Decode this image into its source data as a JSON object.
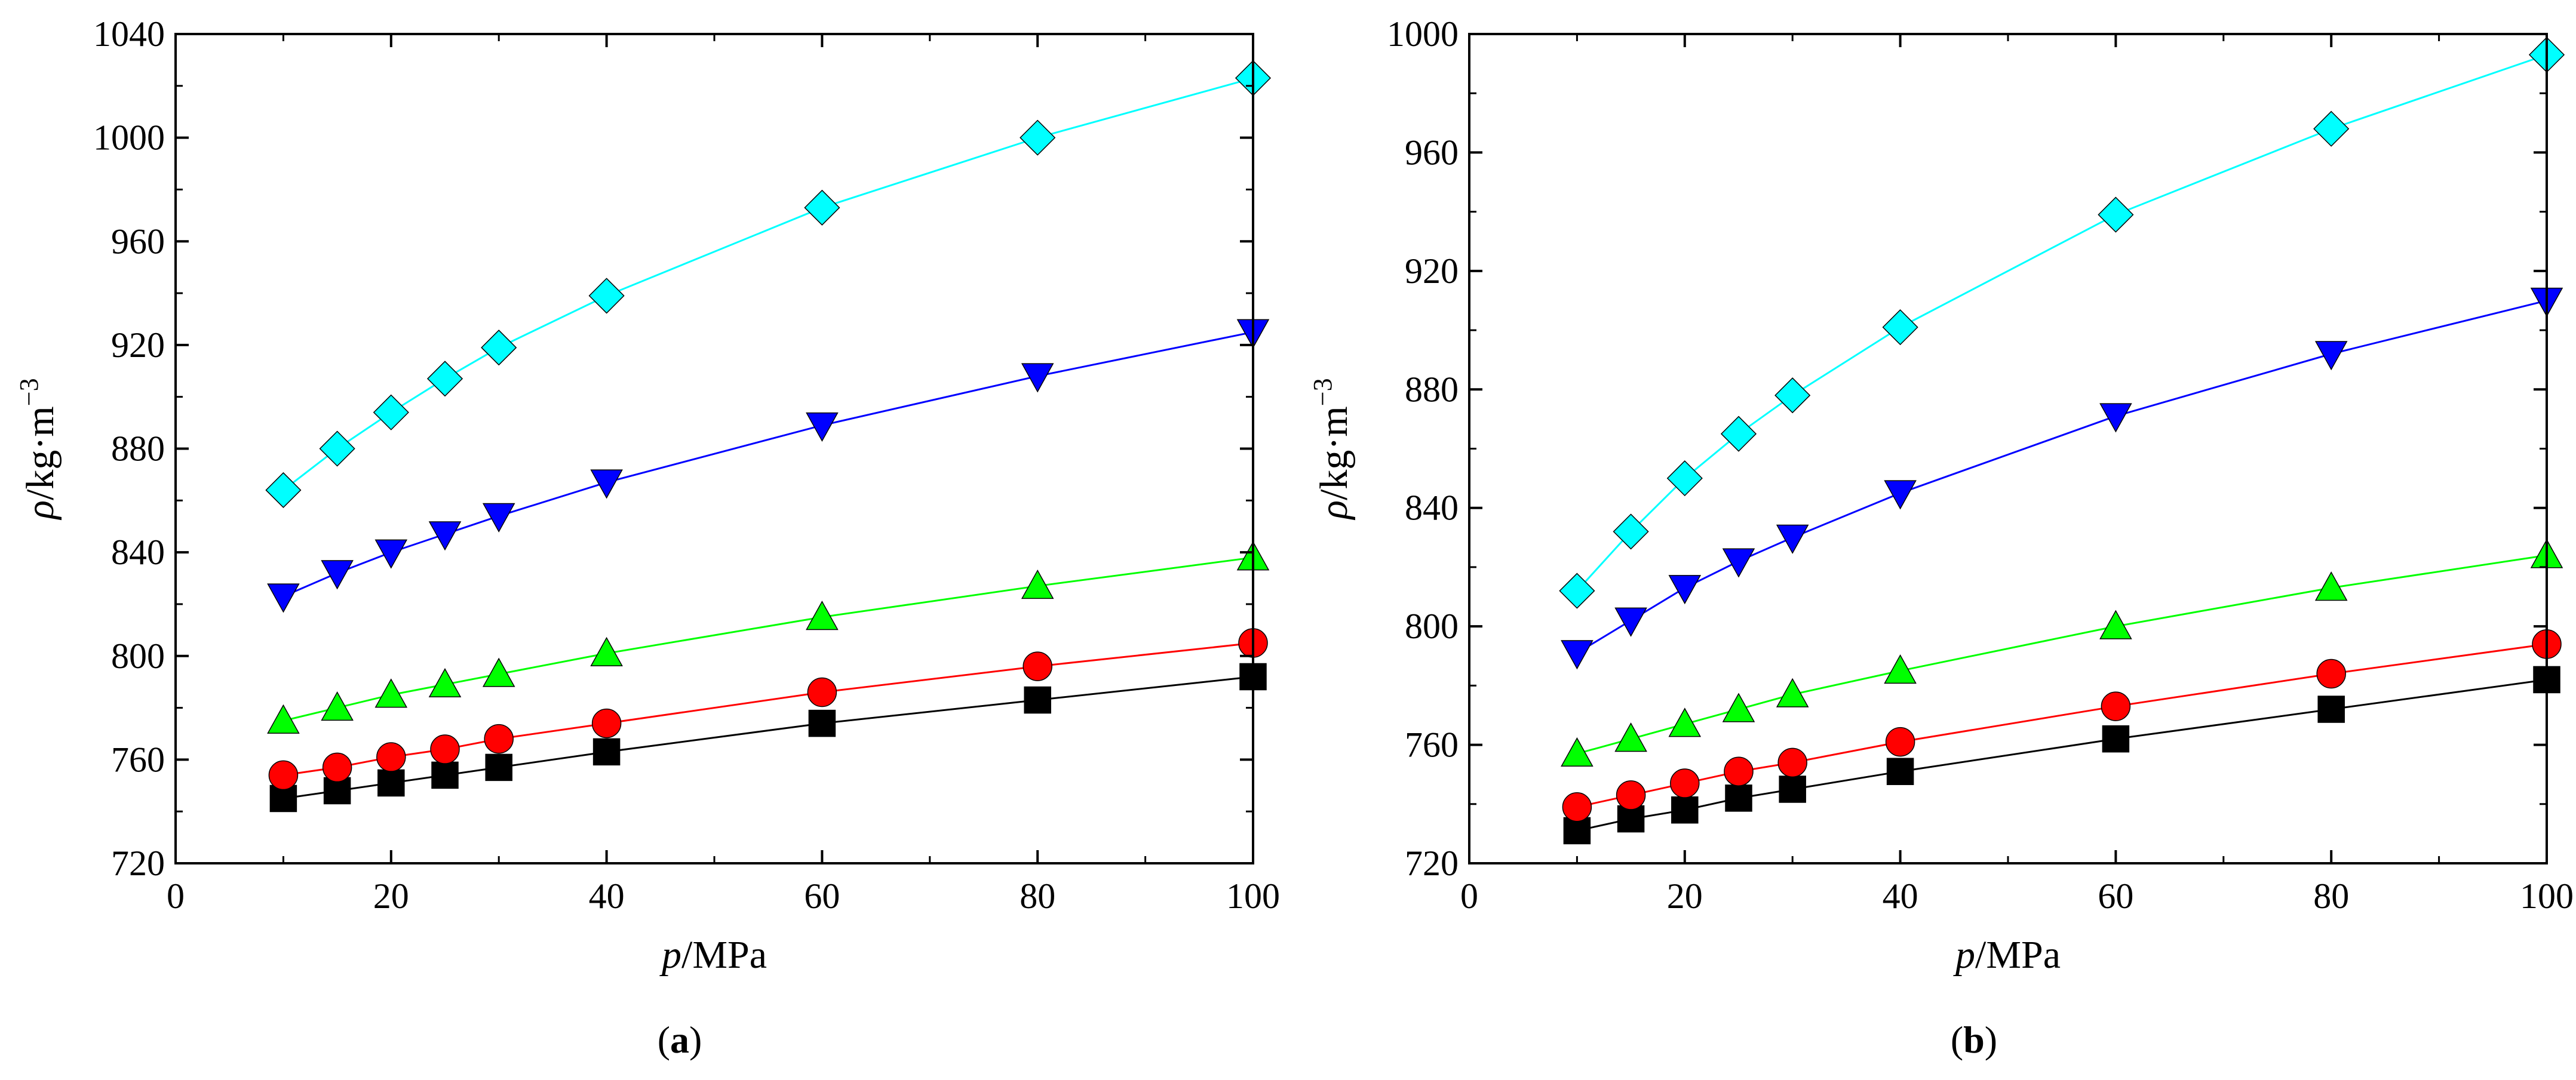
{
  "chart_data": [
    {
      "type": "line",
      "panel_label": "a",
      "xlabel": {
        "symbol": "p",
        "unit": "/MPa"
      },
      "ylabel": {
        "symbol": "ρ",
        "unit": "/kg·m",
        "unit_sup": "−3"
      },
      "xlim": [
        0,
        100
      ],
      "ylim": [
        720,
        1040
      ],
      "xticks": [
        0,
        20,
        40,
        60,
        80,
        100
      ],
      "yticks": [
        720,
        760,
        800,
        840,
        880,
        920,
        960,
        1000,
        1040
      ],
      "x": [
        10,
        15,
        20,
        25,
        30,
        40,
        60,
        80,
        100
      ],
      "series": [
        {
          "color": "#000000",
          "marker": "square",
          "values": [
            745,
            748,
            751,
            754,
            757,
            763,
            774,
            783,
            792
          ]
        },
        {
          "color": "#ff0000",
          "marker": "circle",
          "values": [
            754,
            757,
            761,
            764,
            768,
            774,
            786,
            796,
            805
          ]
        },
        {
          "color": "#00ff00",
          "marker": "triangle-up",
          "values": [
            775,
            780,
            785,
            789,
            793,
            801,
            815,
            827,
            838
          ]
        },
        {
          "color": "#0000ff",
          "marker": "triangle-down",
          "values": [
            823,
            832,
            840,
            847,
            854,
            867,
            889,
            908,
            925
          ]
        },
        {
          "color": "#00ffff",
          "marker": "diamond",
          "values": [
            864,
            880,
            894,
            907,
            919,
            939,
            973,
            1000,
            1023
          ]
        }
      ]
    },
    {
      "type": "line",
      "panel_label": "b",
      "xlabel": {
        "symbol": "p",
        "unit": "/MPa"
      },
      "ylabel": {
        "symbol": "ρ",
        "unit": "/kg·m",
        "unit_sup": "−3"
      },
      "xlim": [
        0,
        100
      ],
      "ylim": [
        720,
        1000
      ],
      "xticks": [
        0,
        20,
        40,
        60,
        80,
        100
      ],
      "yticks": [
        720,
        760,
        800,
        840,
        880,
        920,
        960,
        1000
      ],
      "x": [
        10,
        15,
        20,
        25,
        30,
        40,
        60,
        80,
        100
      ],
      "series": [
        {
          "color": "#000000",
          "marker": "square",
          "values": [
            731,
            735,
            738,
            742,
            745,
            751,
            762,
            772,
            782
          ]
        },
        {
          "color": "#ff0000",
          "marker": "circle",
          "values": [
            739,
            743,
            747,
            751,
            754,
            761,
            773,
            784,
            794
          ]
        },
        {
          "color": "#00ff00",
          "marker": "triangle-up",
          "values": [
            757,
            762,
            767,
            772,
            777,
            785,
            800,
            813,
            824
          ]
        },
        {
          "color": "#0000ff",
          "marker": "triangle-down",
          "values": [
            791,
            802,
            813,
            822,
            830,
            845,
            871,
            892,
            910
          ]
        },
        {
          "color": "#00ffff",
          "marker": "diamond",
          "values": [
            812,
            832,
            850,
            865,
            878,
            901,
            939,
            968,
            993
          ]
        }
      ]
    }
  ]
}
